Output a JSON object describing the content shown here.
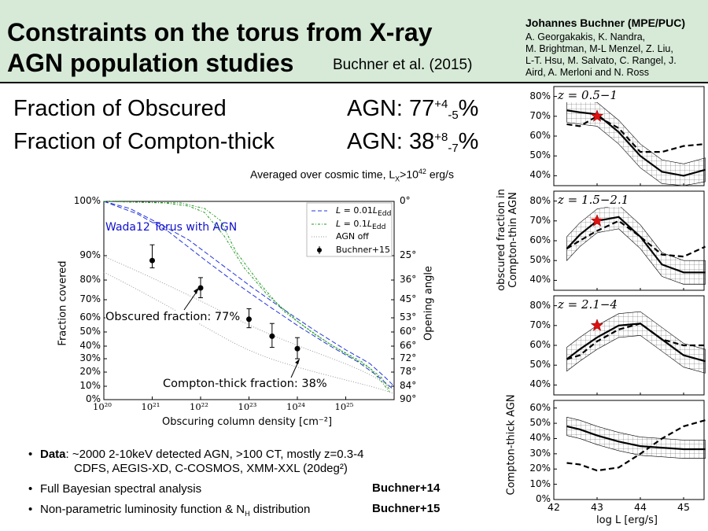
{
  "header": {
    "title": "Constraints on the torus from X-ray\nAGN population studies",
    "citation": "Buchner et al. (2015)",
    "author_main": "Johannes Buchner (MPE/PUC)",
    "coauthors": "A. Georgakakis, K. Nandra,\nM. Brightman, M-L Menzel, Z. Liu,\nL-T. Hsu, M. Salvato, C. Rangel, J.\nAird, A. Merloni and N. Ross"
  },
  "results": {
    "obscured": {
      "label": "Fraction of Obscured",
      "prefix": "AGN: 77",
      "sup": "+4",
      "sub": "-5",
      "suffix": "%"
    },
    "compton_thick": {
      "label": "Fraction of Compton-thick",
      "prefix": "AGN: 38",
      "sup": "+8",
      "sub": "-7",
      "suffix": "%"
    },
    "note": {
      "a": "Averaged over cosmic time, L",
      "b": "X",
      "c": ">10",
      "d": "42",
      "e": " erg/s"
    }
  },
  "bullets": {
    "b1_label": "Data",
    "b1_text": ": ~2000 2-10keV detected AGN, >100 CT, mostly z=0.3-4",
    "b1_line2": "CDFS, AEGIS-XD, C-COSMOS, XMM-XXL (20deg²)",
    "b2_text": "Full Bayesian spectral analysis",
    "b2_ref": "Buchner+14",
    "b3_a": "Non-parametric luminosity function & N",
    "b3_b": "H",
    "b3_c": " distribution",
    "b3_ref": "Buchner+15",
    "bullet_char": "•"
  },
  "chart_data": [
    {
      "type": "line",
      "title": "",
      "xlabel": "Obscuring column density [cm⁻²]",
      "ylabel": "Fraction covered",
      "ylabel_right": "Opening angle",
      "xscale": "log",
      "xlim": [
        1e+20,
        1e+26
      ],
      "xticks": [
        "10²⁰",
        "10²¹",
        "10²²",
        "10²³",
        "10²⁴",
        "10²⁵"
      ],
      "yscale": "arcsine-like (opening angle)",
      "yticks_left": [
        "100%",
        "90%",
        "80%",
        "70%",
        "60%",
        "50%",
        "40%",
        "30%",
        "20%",
        "10%",
        "0%"
      ],
      "yticks_right": [
        "0°",
        "25°",
        "36°",
        "45°",
        "53°",
        "60°",
        "66°",
        "72°",
        "78°",
        "84°",
        "90°"
      ],
      "annotations": {
        "wada": "Wada12 Torus with AGN",
        "obscured": "Obscured fraction: 77%",
        "ct": "Compton-thick fraction: 38%"
      },
      "legend_position": "top-right",
      "legend": [
        "L=0.01L_Edd",
        "L=0.1L_Edd",
        "AGN off",
        "Buchner+15"
      ],
      "legend_html": [
        "<i>L</i> = 0.01<i>L</i><sub>Edd</sub>",
        "<i>L</i> = 0.1<i>L</i><sub>Edd</sub>",
        "AGN off",
        "Buchner+15"
      ],
      "legend_colors": [
        "#2233dd",
        "#229922",
        "#999999",
        "#000000"
      ],
      "points": {
        "x": [
          1e+21,
          1e+22,
          1e+23,
          3e+23,
          1e+24
        ],
        "y": [
          0.88,
          0.76,
          0.59,
          0.47,
          0.38
        ]
      },
      "grid": false
    },
    {
      "type": "area",
      "title": "",
      "panels": [
        "z = 0.5−1",
        "z = 1.5−2.1",
        "z = 2.1−4",
        ""
      ],
      "ylabel_top": "obscured fraction in Compton-thin AGN",
      "ylabel_bottom": "Compton-thick AGN",
      "xlabel": "log L [erg/s]",
      "xticks": [
        "42",
        "43",
        "44",
        "45"
      ],
      "yticks_top": [
        "80%",
        "70%",
        "60%",
        "50%",
        "40%"
      ],
      "yticks_bottom": [
        "60%",
        "50%",
        "40%",
        "30%",
        "20%",
        "10%",
        "0%"
      ],
      "series_solid": [
        {
          "x": [
            42.3,
            42.6,
            43.0,
            43.5,
            44.0,
            44.5,
            45.0,
            45.5
          ],
          "y": [
            0.73,
            0.72,
            0.71,
            0.62,
            0.5,
            0.42,
            0.4,
            0.43
          ]
        },
        {
          "x": [
            42.3,
            42.6,
            43.0,
            43.5,
            44.0,
            44.5,
            45.0,
            45.5
          ],
          "y": [
            0.56,
            0.63,
            0.7,
            0.72,
            0.62,
            0.48,
            0.44,
            0.44
          ]
        },
        {
          "x": [
            42.3,
            42.6,
            43.0,
            43.5,
            44.0,
            44.5,
            45.0,
            45.5
          ],
          "y": [
            0.53,
            0.58,
            0.64,
            0.7,
            0.71,
            0.63,
            0.55,
            0.52
          ]
        },
        {
          "x": [
            42.3,
            42.6,
            43.0,
            43.5,
            44.0,
            44.5,
            45.0,
            45.5
          ],
          "y": [
            0.48,
            0.46,
            0.42,
            0.38,
            0.35,
            0.34,
            0.33,
            0.33
          ]
        }
      ],
      "series_dashed": [
        {
          "x": [
            42.3,
            42.6,
            43.0,
            43.5,
            44.0,
            44.5,
            45.0,
            45.5
          ],
          "y": [
            0.66,
            0.65,
            0.7,
            0.64,
            0.52,
            0.52,
            0.55,
            0.56
          ]
        },
        {
          "x": [
            42.3,
            42.6,
            43.0,
            43.5,
            44.0,
            44.5,
            45.0,
            45.5
          ],
          "y": [
            0.56,
            0.6,
            0.65,
            0.7,
            0.62,
            0.53,
            0.52,
            0.57
          ]
        },
        {
          "x": [
            42.3,
            42.6,
            43.0,
            43.5,
            44.0,
            44.5,
            45.0,
            45.5
          ],
          "y": [
            0.53,
            0.55,
            0.62,
            0.68,
            0.71,
            0.63,
            0.6,
            0.6
          ]
        },
        {
          "x": [
            42.3,
            42.6,
            43.0,
            43.5,
            44.0,
            44.5,
            45.0,
            45.5
          ],
          "y": [
            0.24,
            0.23,
            0.19,
            0.21,
            0.3,
            0.4,
            0.48,
            0.52
          ]
        }
      ],
      "stars": [
        {
          "x": 43.0,
          "y": 0.7
        },
        {
          "x": 43.0,
          "y": 0.7
        },
        {
          "x": 43.0,
          "y": 0.7
        }
      ],
      "star_color": "#dd1111"
    }
  ]
}
